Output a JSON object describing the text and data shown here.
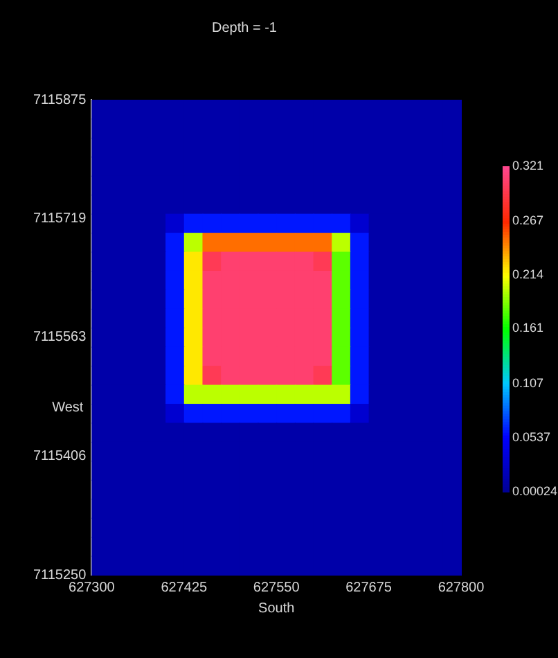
{
  "chart_data": {
    "type": "heatmap",
    "title": "Depth = -1",
    "xlabel": "South",
    "ylabel": "West",
    "xlim": [
      627300,
      627800
    ],
    "xticks": [
      627300,
      627425,
      627550,
      627675,
      627800
    ],
    "ylim": [
      7115250,
      7115875
    ],
    "yticks": [
      7115250,
      7115406,
      7115563,
      7115719,
      7115875
    ],
    "clim": [
      0.00024,
      0.321
    ],
    "cticks": [
      0.00024,
      0.0537,
      0.107,
      0.161,
      0.214,
      0.267,
      0.321
    ],
    "grid": false,
    "cells": [
      [
        0.01,
        0.01,
        0.01,
        0.01,
        0.01,
        0.01,
        0.01,
        0.01,
        0.01,
        0.01,
        0.01,
        0.01,
        0.01,
        0.01,
        0.01,
        0.01,
        0.01,
        0.01,
        0.01,
        0.01
      ],
      [
        0.01,
        0.01,
        0.01,
        0.01,
        0.01,
        0.01,
        0.01,
        0.01,
        0.01,
        0.01,
        0.01,
        0.01,
        0.01,
        0.01,
        0.01,
        0.01,
        0.01,
        0.01,
        0.01,
        0.01
      ],
      [
        0.01,
        0.01,
        0.01,
        0.01,
        0.01,
        0.01,
        0.01,
        0.01,
        0.01,
        0.01,
        0.01,
        0.01,
        0.01,
        0.01,
        0.01,
        0.01,
        0.01,
        0.01,
        0.01,
        0.01
      ],
      [
        0.01,
        0.01,
        0.01,
        0.01,
        0.01,
        0.01,
        0.01,
        0.01,
        0.01,
        0.01,
        0.01,
        0.01,
        0.01,
        0.01,
        0.01,
        0.01,
        0.01,
        0.01,
        0.01,
        0.01
      ],
      [
        0.01,
        0.01,
        0.01,
        0.01,
        0.01,
        0.01,
        0.01,
        0.01,
        0.01,
        0.01,
        0.01,
        0.01,
        0.01,
        0.01,
        0.01,
        0.01,
        0.01,
        0.01,
        0.01,
        0.01
      ],
      [
        0.01,
        0.01,
        0.01,
        0.01,
        0.01,
        0.01,
        0.01,
        0.01,
        0.01,
        0.01,
        0.01,
        0.01,
        0.01,
        0.01,
        0.01,
        0.01,
        0.01,
        0.01,
        0.01,
        0.01
      ],
      [
        0.01,
        0.01,
        0.01,
        0.01,
        0.03,
        0.06,
        0.06,
        0.06,
        0.06,
        0.06,
        0.06,
        0.06,
        0.06,
        0.06,
        0.03,
        0.01,
        0.01,
        0.01,
        0.01,
        0.01
      ],
      [
        0.01,
        0.01,
        0.01,
        0.01,
        0.06,
        0.2,
        0.25,
        0.25,
        0.25,
        0.25,
        0.25,
        0.25,
        0.25,
        0.2,
        0.06,
        0.01,
        0.01,
        0.01,
        0.01,
        0.01
      ],
      [
        0.01,
        0.01,
        0.01,
        0.01,
        0.06,
        0.22,
        0.3,
        0.31,
        0.31,
        0.31,
        0.31,
        0.31,
        0.3,
        0.18,
        0.06,
        0.01,
        0.01,
        0.01,
        0.01,
        0.01
      ],
      [
        0.01,
        0.01,
        0.01,
        0.01,
        0.06,
        0.22,
        0.31,
        0.31,
        0.31,
        0.31,
        0.31,
        0.31,
        0.31,
        0.18,
        0.06,
        0.01,
        0.01,
        0.01,
        0.01,
        0.01
      ],
      [
        0.01,
        0.01,
        0.01,
        0.01,
        0.06,
        0.22,
        0.31,
        0.31,
        0.31,
        0.31,
        0.31,
        0.31,
        0.31,
        0.18,
        0.06,
        0.01,
        0.01,
        0.01,
        0.01,
        0.01
      ],
      [
        0.01,
        0.01,
        0.01,
        0.01,
        0.06,
        0.22,
        0.31,
        0.31,
        0.31,
        0.31,
        0.31,
        0.31,
        0.31,
        0.18,
        0.06,
        0.01,
        0.01,
        0.01,
        0.01,
        0.01
      ],
      [
        0.01,
        0.01,
        0.01,
        0.01,
        0.06,
        0.22,
        0.31,
        0.31,
        0.31,
        0.31,
        0.31,
        0.31,
        0.31,
        0.18,
        0.06,
        0.01,
        0.01,
        0.01,
        0.01,
        0.01
      ],
      [
        0.01,
        0.01,
        0.01,
        0.01,
        0.06,
        0.22,
        0.31,
        0.31,
        0.31,
        0.31,
        0.31,
        0.31,
        0.31,
        0.18,
        0.06,
        0.01,
        0.01,
        0.01,
        0.01,
        0.01
      ],
      [
        0.01,
        0.01,
        0.01,
        0.01,
        0.06,
        0.22,
        0.3,
        0.31,
        0.31,
        0.31,
        0.31,
        0.31,
        0.3,
        0.18,
        0.06,
        0.01,
        0.01,
        0.01,
        0.01,
        0.01
      ],
      [
        0.01,
        0.01,
        0.01,
        0.01,
        0.06,
        0.2,
        0.2,
        0.2,
        0.2,
        0.2,
        0.2,
        0.2,
        0.2,
        0.2,
        0.06,
        0.01,
        0.01,
        0.01,
        0.01,
        0.01
      ],
      [
        0.01,
        0.01,
        0.01,
        0.01,
        0.03,
        0.06,
        0.06,
        0.06,
        0.06,
        0.06,
        0.06,
        0.06,
        0.06,
        0.06,
        0.03,
        0.01,
        0.01,
        0.01,
        0.01,
        0.01
      ],
      [
        0.01,
        0.01,
        0.01,
        0.01,
        0.01,
        0.01,
        0.01,
        0.01,
        0.01,
        0.01,
        0.01,
        0.01,
        0.01,
        0.01,
        0.01,
        0.01,
        0.01,
        0.01,
        0.01,
        0.01
      ],
      [
        0.01,
        0.01,
        0.01,
        0.01,
        0.01,
        0.01,
        0.01,
        0.01,
        0.01,
        0.01,
        0.01,
        0.01,
        0.01,
        0.01,
        0.01,
        0.01,
        0.01,
        0.01,
        0.01,
        0.01
      ],
      [
        0.01,
        0.01,
        0.01,
        0.01,
        0.01,
        0.01,
        0.01,
        0.01,
        0.01,
        0.01,
        0.01,
        0.01,
        0.01,
        0.01,
        0.01,
        0.01,
        0.01,
        0.01,
        0.01,
        0.01
      ],
      [
        0.01,
        0.01,
        0.01,
        0.01,
        0.01,
        0.01,
        0.01,
        0.01,
        0.01,
        0.01,
        0.01,
        0.01,
        0.01,
        0.01,
        0.01,
        0.01,
        0.01,
        0.01,
        0.01,
        0.01
      ],
      [
        0.01,
        0.01,
        0.01,
        0.01,
        0.01,
        0.01,
        0.01,
        0.01,
        0.01,
        0.01,
        0.01,
        0.01,
        0.01,
        0.01,
        0.01,
        0.01,
        0.01,
        0.01,
        0.01,
        0.01
      ],
      [
        0.01,
        0.01,
        0.01,
        0.01,
        0.01,
        0.01,
        0.01,
        0.01,
        0.01,
        0.01,
        0.01,
        0.01,
        0.01,
        0.01,
        0.01,
        0.01,
        0.01,
        0.01,
        0.01,
        0.01
      ],
      [
        0.01,
        0.01,
        0.01,
        0.01,
        0.01,
        0.01,
        0.01,
        0.01,
        0.01,
        0.01,
        0.01,
        0.01,
        0.01,
        0.01,
        0.01,
        0.01,
        0.01,
        0.01,
        0.01,
        0.01
      ],
      [
        0.01,
        0.01,
        0.01,
        0.01,
        0.01,
        0.01,
        0.01,
        0.01,
        0.01,
        0.01,
        0.01,
        0.01,
        0.01,
        0.01,
        0.01,
        0.01,
        0.01,
        0.01,
        0.01,
        0.01
      ]
    ]
  }
}
